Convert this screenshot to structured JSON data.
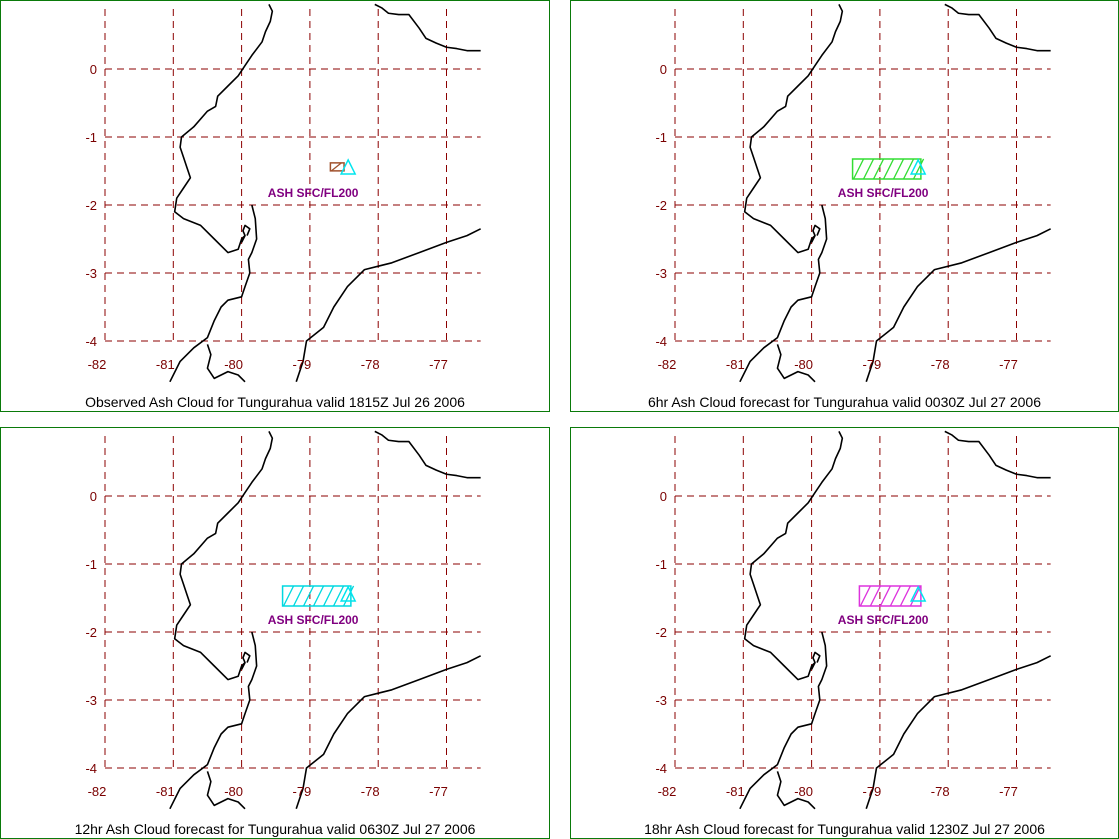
{
  "map": {
    "lon_ticks": [
      "-82",
      "-81",
      "-80",
      "-79",
      "-78",
      "-77"
    ],
    "lat_ticks": [
      "0",
      "-1",
      "-2",
      "-3",
      "-4"
    ],
    "lon_values": [
      -82,
      -81,
      -80,
      -79,
      -78,
      -77
    ],
    "lat_values": [
      0,
      -1,
      -2,
      -3,
      -4
    ],
    "lon_range": [
      -82.1,
      -76.5
    ],
    "lat_range": [
      0.9,
      -4.6
    ],
    "volcano": {
      "lon": -78.44,
      "lat": -1.47
    }
  },
  "colors": {
    "panel_border": "#0a7a0a",
    "grid": "#8b0000",
    "tick_text": "#7a0000",
    "coastline": "#000000",
    "cloud_label": "#800080",
    "volcano_symbol": "#00e5ee"
  },
  "panels": [
    {
      "caption": "Observed Ash Cloud for Tungurahua valid 1815Z Jul 26 2006",
      "cloud_label": "ASH SFC/FL200",
      "cloud_color": "#a0522d",
      "cloud_extent": {
        "lon_west": -78.7,
        "lon_east": -78.5,
        "lat": -1.44
      }
    },
    {
      "caption": "6hr Ash Cloud forecast for Tungurahua valid 0030Z Jul 27 2006",
      "cloud_label": "ASH SFC/FL200",
      "cloud_color": "#33dd33",
      "cloud_extent": {
        "lon_west": -79.4,
        "lon_east": -78.4,
        "lat": -1.47
      }
    },
    {
      "caption": "12hr Ash Cloud forecast for Tungurahua valid 0630Z Jul 27 2006",
      "cloud_label": "ASH SFC/FL200",
      "cloud_color": "#00d8e0",
      "cloud_extent": {
        "lon_west": -79.4,
        "lon_east": -78.4,
        "lat": -1.47
      }
    },
    {
      "caption": "18hr Ash Cloud forecast for Tungurahua valid 1230Z Jul 27 2006",
      "cloud_label": "ASH SFC/FL200",
      "cloud_color": "#dd33dd",
      "cloud_extent": {
        "lon_west": -79.3,
        "lon_east": -78.4,
        "lat": -1.47
      }
    }
  ]
}
